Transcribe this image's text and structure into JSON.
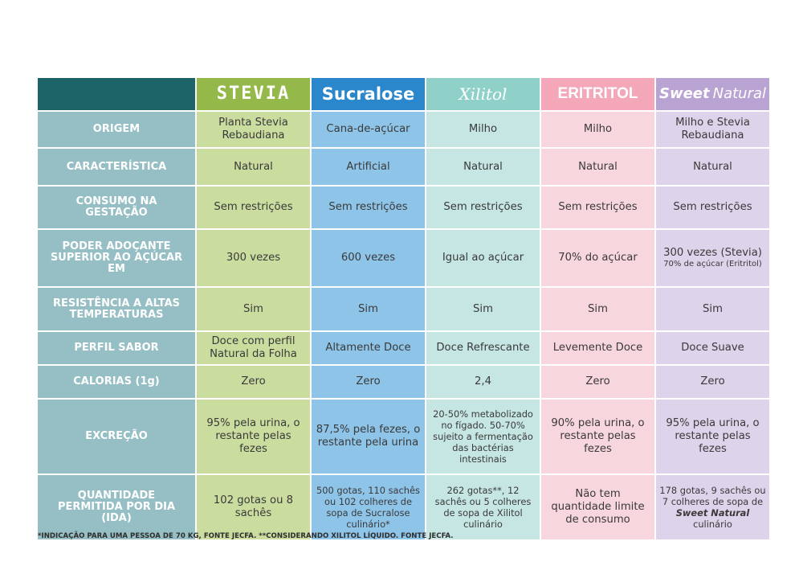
{
  "header": {
    "corner": "",
    "stevia": "STEVIA",
    "sucralose": "Sucralose",
    "xilitol": "Xilitol",
    "eritritol": "ERITRITOL",
    "sweet_bold": "Sweet",
    "sweet_light": "Natural"
  },
  "rows": [
    {
      "label": "ORIGEM",
      "stevia": "Planta Stevia Rebaudiana",
      "sucralose": "Cana-de-açúcar",
      "xilitol": "Milho",
      "eritritol": "Milho",
      "sweet": "Milho e Stevia Rebaudiana"
    },
    {
      "label": "CARACTERÍSTICA",
      "stevia": "Natural",
      "sucralose": "Artificial",
      "xilitol": "Natural",
      "eritritol": "Natural",
      "sweet": "Natural"
    },
    {
      "label": "CONSUMO NA GESTAÇÃO",
      "stevia": "Sem restrições",
      "sucralose": "Sem restrições",
      "xilitol": "Sem restrições",
      "eritritol": "Sem restrições",
      "sweet": "Sem restrições"
    },
    {
      "label": "PODER ADOÇANTE SUPERIOR AO AÇÚCAR EM",
      "stevia": "300 vezes",
      "sucralose": "600 vezes",
      "xilitol": "Igual ao açúcar",
      "eritritol": "70% do açúcar",
      "sweet": "300 vezes (Stevia)",
      "sweet_sub": "70% de açúcar (Eritritol)"
    },
    {
      "label": "RESISTÊNCIA A ALTAS TEMPERATURAS",
      "stevia": "Sim",
      "sucralose": "Sim",
      "xilitol": "Sim",
      "eritritol": "Sim",
      "sweet": "Sim"
    },
    {
      "label": "PERFIL SABOR",
      "stevia": "Doce com perfil Natural da Folha",
      "sucralose": "Altamente Doce",
      "xilitol": "Doce Refrescante",
      "eritritol": "Levemente Doce",
      "sweet": "Doce Suave"
    },
    {
      "label": "CALORIAS (1g)",
      "stevia": "Zero",
      "sucralose": "Zero",
      "xilitol": "2,4",
      "eritritol": "Zero",
      "sweet": "Zero"
    },
    {
      "label": "EXCREÇÃO",
      "stevia": "95% pela urina, o restante pelas fezes",
      "sucralose": "87,5% pela fezes, o restante pela urina",
      "xilitol": "20-50% metabolizado no fígado. 50-70% sujeito a fermentação das bactérias intestinais",
      "eritritol": "90% pela urina, o restante pelas fezes",
      "sweet": "95% pela urina, o restante pelas fezes"
    },
    {
      "label": "QUANTIDADE PERMITIDA POR DIA (IDA)",
      "stevia": "102 gotas ou 8 sachês",
      "sucralose": "500 gotas, 110 sachês ou 102 colheres de sopa de Sucralose culinário*",
      "xilitol": "262 gotas**, 12 sachês ou 5 colheres de sopa de Xilitol culinário",
      "eritritol": "Não tem quantidade limite de consumo",
      "sweet_pre": "178 gotas, 9 sachês ou 7 colheres de sopa de",
      "sweet_brand": "Sweet Natural",
      "sweet_post": "culinário"
    }
  ],
  "footnote": "*INDICAÇÃO PARA UMA PESSOA DE 70 KG, FONTE JECFA.  **CONSIDERANDO XILITOL LÍQUIDO. FONTE JECFA."
}
